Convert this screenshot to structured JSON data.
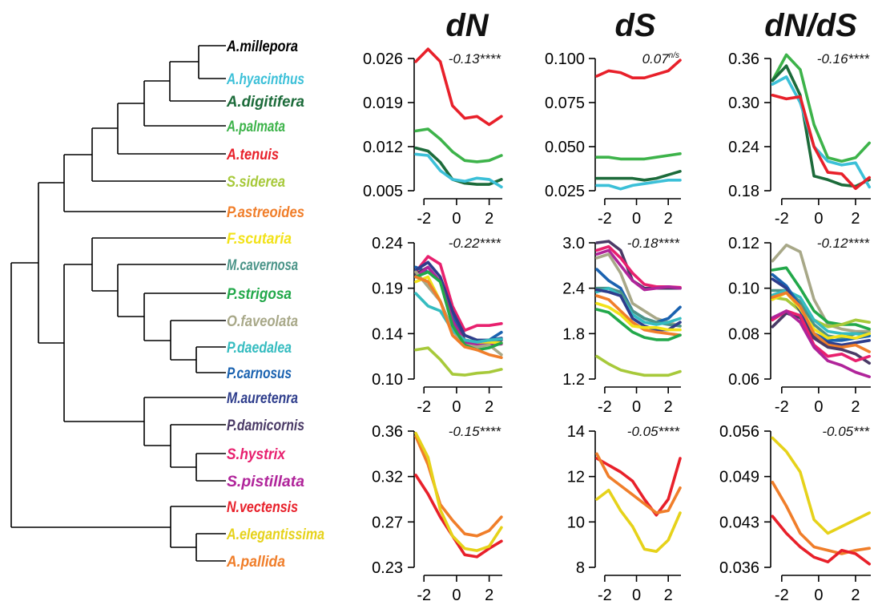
{
  "column_titles": [
    "dN",
    "dS",
    "dN/dS"
  ],
  "taxa": [
    {
      "name": "A.millepora",
      "color": "#000000"
    },
    {
      "name": "A.hyacinthus",
      "color": "#3cc0d8"
    },
    {
      "name": "A.digitifera",
      "color": "#1c6b3a"
    },
    {
      "name": "A.palmata",
      "color": "#3db34a"
    },
    {
      "name": "A.tenuis",
      "color": "#e8202a"
    },
    {
      "name": "S.siderea",
      "color": "#a7c93a"
    },
    {
      "name": "P.astreoides",
      "color": "#f07e2a"
    },
    {
      "name": "F.scutaria",
      "color": "#f2e219"
    },
    {
      "name": "M.cavernosa",
      "color": "#4a9488"
    },
    {
      "name": "P.strigosa",
      "color": "#22a84a"
    },
    {
      "name": "O.faveolata",
      "color": "#a8a888"
    },
    {
      "name": "P.daedalea",
      "color": "#35bcc0"
    },
    {
      "name": "P.carnosus",
      "color": "#1a62b0"
    },
    {
      "name": "M.auretenra",
      "color": "#2e3d8c"
    },
    {
      "name": "P.damicornis",
      "color": "#4a3a66"
    },
    {
      "name": "S.hystrix",
      "color": "#e8206e"
    },
    {
      "name": "S.pistillata",
      "color": "#b0249a"
    },
    {
      "name": "N.vectensis",
      "color": "#e8202a"
    },
    {
      "name": "A.elegantissima",
      "color": "#e6d21a"
    },
    {
      "name": "A.pallida",
      "color": "#f07e2a"
    }
  ],
  "chart_data": [
    {
      "type": "line",
      "row": 0,
      "col": 0,
      "stat": "-0.13",
      "stars": "****",
      "x": [
        -2.5,
        -1.75,
        -1,
        -0.25,
        0.5,
        1.25,
        2,
        2.75
      ],
      "xticks": [
        -2,
        0,
        2
      ],
      "xlim": [
        -2.6,
        3.0
      ],
      "ylim": [
        0.005,
        0.026
      ],
      "yticks": [
        "0.005",
        "0.012",
        "0.019",
        "0.026"
      ],
      "series": [
        {
          "color": "#e8202a",
          "values": [
            0.0255,
            0.0275,
            0.0255,
            0.0185,
            0.0165,
            0.0168,
            0.0155,
            0.0168
          ]
        },
        {
          "color": "#3db34a",
          "values": [
            0.0145,
            0.0148,
            0.0132,
            0.0112,
            0.0098,
            0.0096,
            0.0098,
            0.0106
          ]
        },
        {
          "color": "#1c6b3a",
          "values": [
            0.0118,
            0.0113,
            0.0095,
            0.0068,
            0.0062,
            0.006,
            0.006,
            0.0068
          ]
        },
        {
          "color": "#3cc0d8",
          "values": [
            0.0108,
            0.0106,
            0.0082,
            0.0068,
            0.0065,
            0.007,
            0.0068,
            0.0056
          ]
        }
      ]
    },
    {
      "type": "line",
      "row": 0,
      "col": 1,
      "stat": "0.07",
      "stars": "n/s",
      "x": [
        -2.5,
        -1.75,
        -1,
        -0.25,
        0.5,
        1.25,
        2,
        2.75
      ],
      "xticks": [
        -2,
        0,
        2
      ],
      "xlim": [
        -2.6,
        3.0
      ],
      "ylim": [
        0.025,
        0.1
      ],
      "yticks": [
        "0.025",
        "0.050",
        "0.075",
        "0.100"
      ],
      "series": [
        {
          "color": "#e8202a",
          "values": [
            0.09,
            0.093,
            0.092,
            0.089,
            0.089,
            0.091,
            0.093,
            0.099
          ]
        },
        {
          "color": "#3db34a",
          "values": [
            0.044,
            0.044,
            0.043,
            0.043,
            0.043,
            0.044,
            0.045,
            0.046
          ]
        },
        {
          "color": "#1c6b3a",
          "values": [
            0.032,
            0.032,
            0.032,
            0.032,
            0.031,
            0.032,
            0.034,
            0.036
          ]
        },
        {
          "color": "#3cc0d8",
          "values": [
            0.028,
            0.028,
            0.026,
            0.028,
            0.029,
            0.03,
            0.031,
            0.031
          ]
        }
      ]
    },
    {
      "type": "line",
      "row": 0,
      "col": 2,
      "stat": "-0.16",
      "stars": "****",
      "x": [
        -2.5,
        -1.75,
        -1,
        -0.25,
        0.5,
        1.25,
        2,
        2.75
      ],
      "xticks": [
        -2,
        0,
        2
      ],
      "xlim": [
        -2.6,
        3.0
      ],
      "ylim": [
        0.18,
        0.36
      ],
      "yticks": [
        "0.18",
        "0.24",
        "0.30",
        "0.36"
      ],
      "series": [
        {
          "color": "#3db34a",
          "values": [
            0.33,
            0.365,
            0.345,
            0.27,
            0.225,
            0.22,
            0.225,
            0.245
          ]
        },
        {
          "color": "#1c6b3a",
          "values": [
            0.33,
            0.35,
            0.31,
            0.2,
            0.195,
            0.188,
            0.186,
            0.195
          ]
        },
        {
          "color": "#3cc0d8",
          "values": [
            0.325,
            0.335,
            0.3,
            0.24,
            0.22,
            0.215,
            0.218,
            0.185
          ]
        },
        {
          "color": "#e8202a",
          "values": [
            0.31,
            0.305,
            0.308,
            0.24,
            0.205,
            0.203,
            0.183,
            0.198
          ]
        }
      ]
    },
    {
      "type": "line",
      "row": 1,
      "col": 0,
      "stat": "-0.22",
      "stars": "****",
      "x": [
        -2.5,
        -1.75,
        -1,
        -0.25,
        0.5,
        1.25,
        2,
        2.75
      ],
      "xticks": [
        -2,
        0,
        2
      ],
      "xlim": [
        -2.6,
        3.0
      ],
      "ylim": [
        0.1,
        0.24
      ],
      "yticks": [
        "0.10",
        "0.14",
        "0.19",
        "0.24"
      ],
      "series": [
        {
          "color": "#e8206e",
          "values": [
            0.21,
            0.226,
            0.218,
            0.175,
            0.15,
            0.155,
            0.155,
            0.157
          ]
        },
        {
          "color": "#1a62b0",
          "values": [
            0.215,
            0.21,
            0.2,
            0.165,
            0.14,
            0.138,
            0.14,
            0.148
          ]
        },
        {
          "color": "#2e3d8c",
          "values": [
            0.212,
            0.22,
            0.205,
            0.17,
            0.145,
            0.14,
            0.14,
            0.142
          ]
        },
        {
          "color": "#4a3a66",
          "values": [
            0.208,
            0.215,
            0.2,
            0.16,
            0.14,
            0.138,
            0.137,
            0.14
          ]
        },
        {
          "color": "#b0249a",
          "values": [
            0.205,
            0.215,
            0.2,
            0.16,
            0.138,
            0.135,
            0.135,
            0.136
          ]
        },
        {
          "color": "#f2e219",
          "values": [
            0.2,
            0.205,
            0.18,
            0.15,
            0.14,
            0.138,
            0.138,
            0.137
          ]
        },
        {
          "color": "#4a9488",
          "values": [
            0.205,
            0.2,
            0.18,
            0.15,
            0.14,
            0.138,
            0.14,
            0.141
          ]
        },
        {
          "color": "#a8a888",
          "values": [
            0.21,
            0.195,
            0.18,
            0.15,
            0.135,
            0.133,
            0.135,
            0.125
          ]
        },
        {
          "color": "#35bcc0",
          "values": [
            0.188,
            0.175,
            0.17,
            0.15,
            0.14,
            0.138,
            0.14,
            0.141
          ]
        },
        {
          "color": "#22a84a",
          "values": [
            0.205,
            0.21,
            0.2,
            0.155,
            0.135,
            0.13,
            0.132,
            0.137
          ]
        },
        {
          "color": "#f07e2a",
          "values": [
            0.205,
            0.2,
            0.18,
            0.145,
            0.133,
            0.13,
            0.125,
            0.122
          ]
        },
        {
          "color": "#a7c93a",
          "values": [
            0.13,
            0.132,
            0.12,
            0.105,
            0.104,
            0.106,
            0.107,
            0.11
          ]
        }
      ]
    },
    {
      "type": "line",
      "row": 1,
      "col": 1,
      "stat": "-0.18",
      "stars": "****",
      "x": [
        -2.5,
        -1.75,
        -1,
        -0.25,
        0.5,
        1.25,
        2,
        2.75
      ],
      "xticks": [
        -2,
        0,
        2
      ],
      "xlim": [
        -2.6,
        3.0
      ],
      "ylim": [
        1.2,
        3.0
      ],
      "yticks": [
        "1.2",
        "1.8",
        "2.4",
        "3.0"
      ],
      "series": [
        {
          "color": "#4a3a66",
          "values": [
            3.0,
            3.02,
            2.9,
            2.5,
            2.4,
            2.4,
            2.4,
            2.4
          ]
        },
        {
          "color": "#e8206e",
          "values": [
            2.9,
            2.95,
            2.8,
            2.6,
            2.45,
            2.42,
            2.42,
            2.41
          ]
        },
        {
          "color": "#b0249a",
          "values": [
            2.85,
            2.9,
            2.7,
            2.5,
            2.38,
            2.4,
            2.42,
            2.4
          ]
        },
        {
          "color": "#a8a888",
          "values": [
            2.8,
            2.85,
            2.6,
            2.2,
            2.1,
            2.0,
            1.95,
            1.9
          ]
        },
        {
          "color": "#1a62b0",
          "values": [
            2.65,
            2.5,
            2.4,
            2.1,
            2.0,
            1.95,
            2.0,
            2.15
          ]
        },
        {
          "color": "#4a9488",
          "values": [
            2.4,
            2.4,
            2.35,
            2.1,
            2.0,
            1.95,
            1.92,
            1.9
          ]
        },
        {
          "color": "#35bcc0",
          "values": [
            2.35,
            2.4,
            2.3,
            2.05,
            1.95,
            1.92,
            1.95,
            2.0
          ]
        },
        {
          "color": "#2e3d8c",
          "values": [
            2.38,
            2.35,
            2.3,
            2.0,
            1.9,
            1.85,
            1.85,
            1.95
          ]
        },
        {
          "color": "#f07e2a",
          "values": [
            2.3,
            2.25,
            2.1,
            1.95,
            1.85,
            1.82,
            1.8,
            1.78
          ]
        },
        {
          "color": "#f2e219",
          "values": [
            2.2,
            2.15,
            2.05,
            1.9,
            1.88,
            1.88,
            1.85,
            1.85
          ]
        },
        {
          "color": "#22a84a",
          "values": [
            2.12,
            2.08,
            1.95,
            1.82,
            1.75,
            1.72,
            1.72,
            1.78
          ]
        },
        {
          "color": "#a7c93a",
          "values": [
            1.5,
            1.4,
            1.32,
            1.28,
            1.25,
            1.25,
            1.25,
            1.3
          ]
        }
      ]
    },
    {
      "type": "line",
      "row": 1,
      "col": 2,
      "stat": "-0.12",
      "stars": "****",
      "x": [
        -2.5,
        -1.75,
        -1,
        -0.25,
        0.5,
        1.25,
        2,
        2.75
      ],
      "xticks": [
        -2,
        0,
        2
      ],
      "xlim": [
        -2.6,
        3.0
      ],
      "ylim": [
        0.06,
        0.12
      ],
      "yticks": [
        "0.06",
        "0.08",
        "0.10",
        "0.12"
      ],
      "series": [
        {
          "color": "#a8a888",
          "values": [
            0.112,
            0.119,
            0.116,
            0.095,
            0.084,
            0.082,
            0.081,
            0.081
          ]
        },
        {
          "color": "#22a84a",
          "values": [
            0.108,
            0.109,
            0.1,
            0.09,
            0.085,
            0.084,
            0.084,
            0.082
          ]
        },
        {
          "color": "#a7c93a",
          "values": [
            0.096,
            0.095,
            0.09,
            0.086,
            0.083,
            0.084,
            0.086,
            0.085
          ]
        },
        {
          "color": "#4a9488",
          "values": [
            0.099,
            0.099,
            0.094,
            0.084,
            0.079,
            0.078,
            0.08,
            0.08
          ]
        },
        {
          "color": "#35bcc0",
          "values": [
            0.097,
            0.099,
            0.096,
            0.086,
            0.081,
            0.08,
            0.08,
            0.079
          ]
        },
        {
          "color": "#1a62b0",
          "values": [
            0.106,
            0.101,
            0.092,
            0.08,
            0.077,
            0.077,
            0.078,
            0.079
          ]
        },
        {
          "color": "#2e3d8c",
          "values": [
            0.104,
            0.1,
            0.09,
            0.079,
            0.076,
            0.075,
            0.076,
            0.077
          ]
        },
        {
          "color": "#f2e219",
          "values": [
            0.095,
            0.098,
            0.091,
            0.082,
            0.078,
            0.079,
            0.078,
            0.08
          ]
        },
        {
          "color": "#f07e2a",
          "values": [
            0.096,
            0.098,
            0.092,
            0.08,
            0.075,
            0.074,
            0.075,
            0.072
          ]
        },
        {
          "color": "#4a3a66",
          "values": [
            0.083,
            0.089,
            0.087,
            0.078,
            0.074,
            0.073,
            0.071,
            0.067
          ]
        },
        {
          "color": "#e8206e",
          "values": [
            0.086,
            0.09,
            0.088,
            0.075,
            0.07,
            0.071,
            0.068,
            0.07
          ]
        },
        {
          "color": "#b0249a",
          "values": [
            0.087,
            0.09,
            0.085,
            0.074,
            0.068,
            0.066,
            0.063,
            0.061
          ]
        }
      ]
    },
    {
      "type": "line",
      "row": 2,
      "col": 0,
      "stat": "-0.15",
      "stars": "****",
      "x": [
        -2.5,
        -1.75,
        -1,
        -0.25,
        0.5,
        1.25,
        2,
        2.75
      ],
      "xticks": [
        -2,
        0,
        2
      ],
      "xlim": [
        -2.6,
        3.0
      ],
      "ylim": [
        0.23,
        0.36
      ],
      "yticks": [
        "0.23",
        "0.27",
        "0.32",
        "0.36"
      ],
      "series": [
        {
          "color": "#e8202a",
          "values": [
            0.318,
            0.3,
            0.278,
            0.26,
            0.242,
            0.24,
            0.248,
            0.255
          ]
        },
        {
          "color": "#f07e2a",
          "values": [
            0.355,
            0.328,
            0.29,
            0.275,
            0.262,
            0.26,
            0.265,
            0.278
          ]
        },
        {
          "color": "#e6d21a",
          "values": [
            0.358,
            0.335,
            0.285,
            0.26,
            0.248,
            0.246,
            0.25,
            0.268
          ]
        }
      ]
    },
    {
      "type": "line",
      "row": 2,
      "col": 1,
      "stat": "-0.05",
      "stars": "****",
      "x": [
        -2.5,
        -1.75,
        -1,
        -0.25,
        0.5,
        1.25,
        2,
        2.75
      ],
      "xticks": [
        -2,
        0,
        2
      ],
      "xlim": [
        -2.6,
        3.0
      ],
      "ylim": [
        8,
        14
      ],
      "yticks": [
        "8",
        "10",
        "12",
        "14"
      ],
      "series": [
        {
          "color": "#e8202a",
          "values": [
            12.8,
            12.5,
            12.2,
            11.8,
            11.0,
            10.3,
            11.0,
            12.8
          ]
        },
        {
          "color": "#f07e2a",
          "values": [
            13.0,
            12.0,
            11.6,
            11.2,
            10.8,
            10.4,
            10.5,
            11.5
          ]
        },
        {
          "color": "#e6d21a",
          "values": [
            11.0,
            11.4,
            10.5,
            9.8,
            8.8,
            8.7,
            9.2,
            10.4
          ]
        }
      ]
    },
    {
      "type": "line",
      "row": 2,
      "col": 2,
      "stat": "-0.05",
      "stars": "***",
      "x": [
        -2.5,
        -1.75,
        -1,
        -0.25,
        0.5,
        1.25,
        2,
        2.75
      ],
      "xticks": [
        -2,
        0,
        2
      ],
      "xlim": [
        -2.6,
        3.0
      ],
      "ylim": [
        0.036,
        0.056
      ],
      "yticks": [
        "0.036",
        "0.043",
        "0.049",
        "0.056"
      ],
      "series": [
        {
          "color": "#e6d21a",
          "values": [
            0.055,
            0.053,
            0.05,
            0.043,
            0.041,
            0.042,
            0.043,
            0.044
          ]
        },
        {
          "color": "#f07e2a",
          "values": [
            0.0485,
            0.045,
            0.041,
            0.039,
            0.0385,
            0.038,
            0.0385,
            0.0388
          ]
        },
        {
          "color": "#e8202a",
          "values": [
            0.0435,
            0.041,
            0.039,
            0.0375,
            0.0368,
            0.0385,
            0.038,
            0.0365
          ]
        }
      ]
    }
  ]
}
